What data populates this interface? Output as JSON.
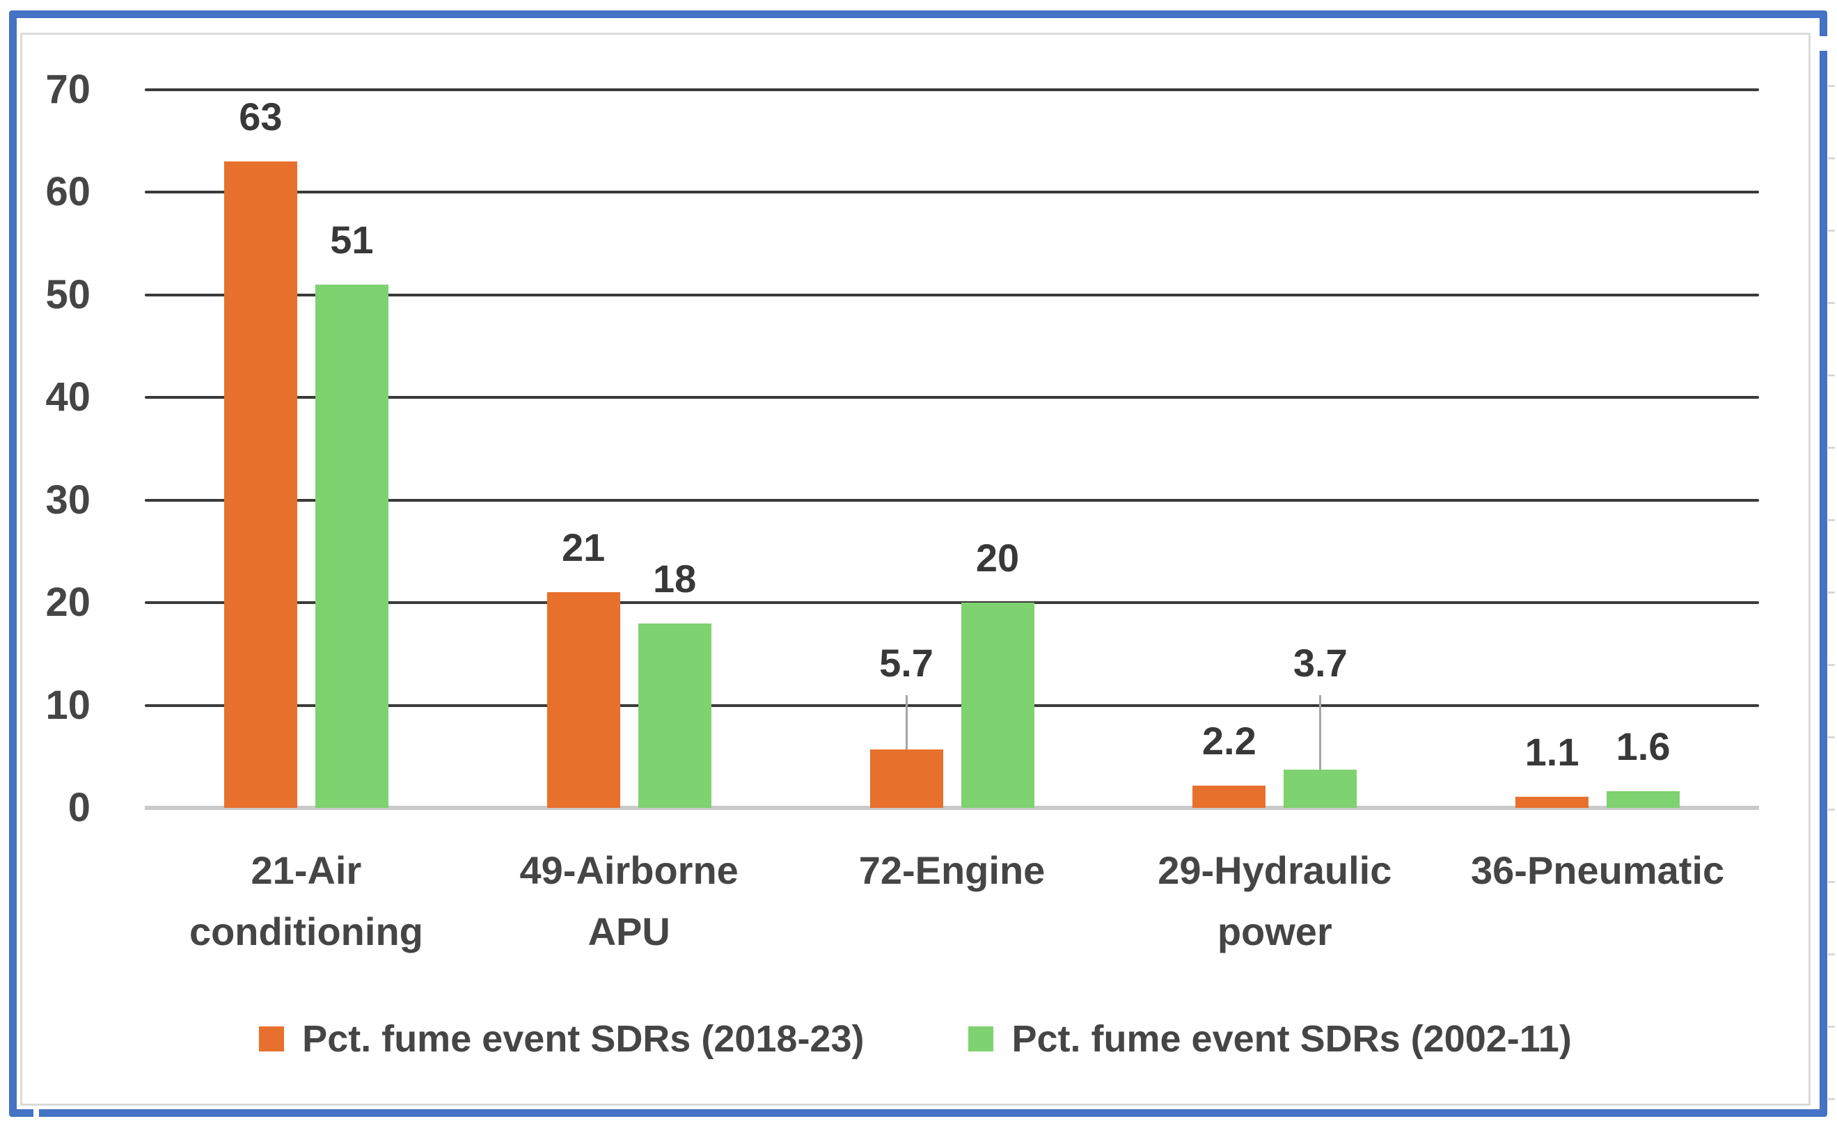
{
  "window": {
    "background_color": "#FFFFFF",
    "selection_border_color": "#4472C4",
    "chart_border_color": "#DADADA",
    "spreadsheet_gridline_color": "#D8D8D8"
  },
  "chart_data": {
    "type": "bar",
    "title": "",
    "xlabel": "",
    "ylabel": "",
    "categories": [
      "21-Air conditioning",
      "49-Airborne APU",
      "72-Engine",
      "29-Hydraulic power",
      "36-Pneumatic"
    ],
    "category_label_lines": [
      [
        "21-Air",
        "conditioning"
      ],
      [
        "49-Airborne",
        "APU"
      ],
      [
        "72-Engine"
      ],
      [
        "29-Hydraulic",
        "power"
      ],
      [
        "36-Pneumatic"
      ]
    ],
    "series": [
      {
        "name": "Pct. fume event SDRs (2018-23)",
        "color": "#E8702D",
        "values": [
          63,
          21,
          5.7,
          2.2,
          1.1
        ],
        "data_labels": [
          "63",
          "21",
          "5.7",
          "2.2",
          "1.1"
        ],
        "label_placement": [
          "above",
          "above",
          "leader",
          "above",
          "above"
        ]
      },
      {
        "name": "Pct. fume event SDRs (2002-11)",
        "color": "#7ED26F",
        "values": [
          51,
          18,
          20,
          3.7,
          1.6
        ],
        "data_labels": [
          "51",
          "18",
          "20",
          "3.7",
          "1.6"
        ],
        "label_placement": [
          "above",
          "above",
          "above",
          "leader",
          "above"
        ]
      }
    ],
    "ylim": [
      0,
      70
    ],
    "yticks": [
      0,
      10,
      20,
      30,
      40,
      50,
      60,
      70
    ],
    "grid": "horizontal_major",
    "gridline_color": "#3A3A3A",
    "axis_line_color": "#C9C9C9",
    "leader_line_color": "#A6A6A6",
    "axis_text_color": "#454545",
    "data_label_color": "#383838",
    "legend_position": "bottom"
  }
}
